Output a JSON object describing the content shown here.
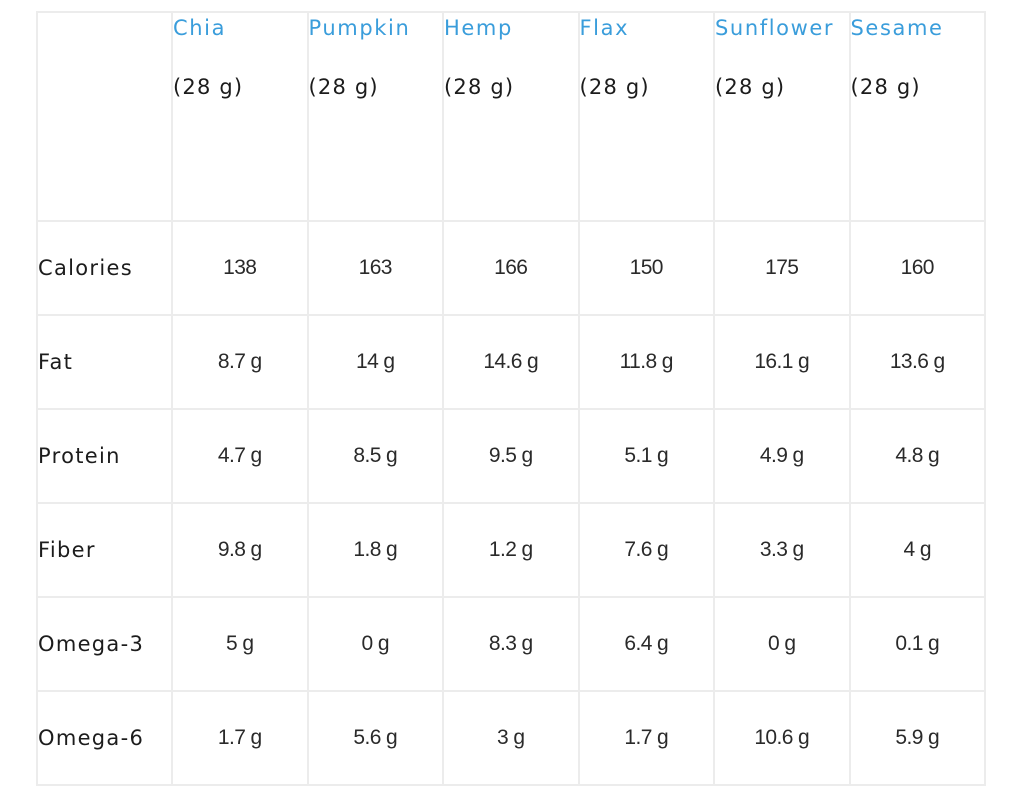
{
  "table": {
    "columns": [
      {
        "name": "Chia",
        "serving": "(28 g)"
      },
      {
        "name": "Pumpkin",
        "serving": "(28 g)"
      },
      {
        "name": "Hemp",
        "serving": "(28 g)"
      },
      {
        "name": "Flax",
        "serving": "(28 g)"
      },
      {
        "name": "Sunflower",
        "serving": "(28 g)"
      },
      {
        "name": "Sesame",
        "serving": "(28 g)"
      }
    ],
    "rows": [
      {
        "label": "Calories",
        "values": [
          "138",
          "163",
          "166",
          "150",
          "175",
          "160"
        ]
      },
      {
        "label": "Fat",
        "values": [
          "8.7 g",
          "14 g",
          "14.6 g",
          "11.8 g",
          "16.1 g",
          "13.6 g"
        ]
      },
      {
        "label": "Protein",
        "values": [
          "4.7 g",
          "8.5 g",
          "9.5 g",
          "5.1 g",
          "4.9 g",
          "4.8 g"
        ]
      },
      {
        "label": "Fiber",
        "values": [
          "9.8 g",
          "1.8 g",
          "1.2 g",
          "7.6 g",
          "3.3 g",
          "4 g"
        ]
      },
      {
        "label": "Omega-3",
        "values": [
          "5 g",
          "0 g",
          "8.3 g",
          "6.4 g",
          "0 g",
          "0.1 g"
        ]
      },
      {
        "label": "Omega-6",
        "values": [
          "1.7 g",
          "5.6 g",
          "3 g",
          "1.7 g",
          "10.6 g",
          "5.9 g"
        ]
      }
    ]
  },
  "colors": {
    "header_accent": "#3a9ddb",
    "border": "#ececec",
    "text": "#1c1c1c"
  }
}
